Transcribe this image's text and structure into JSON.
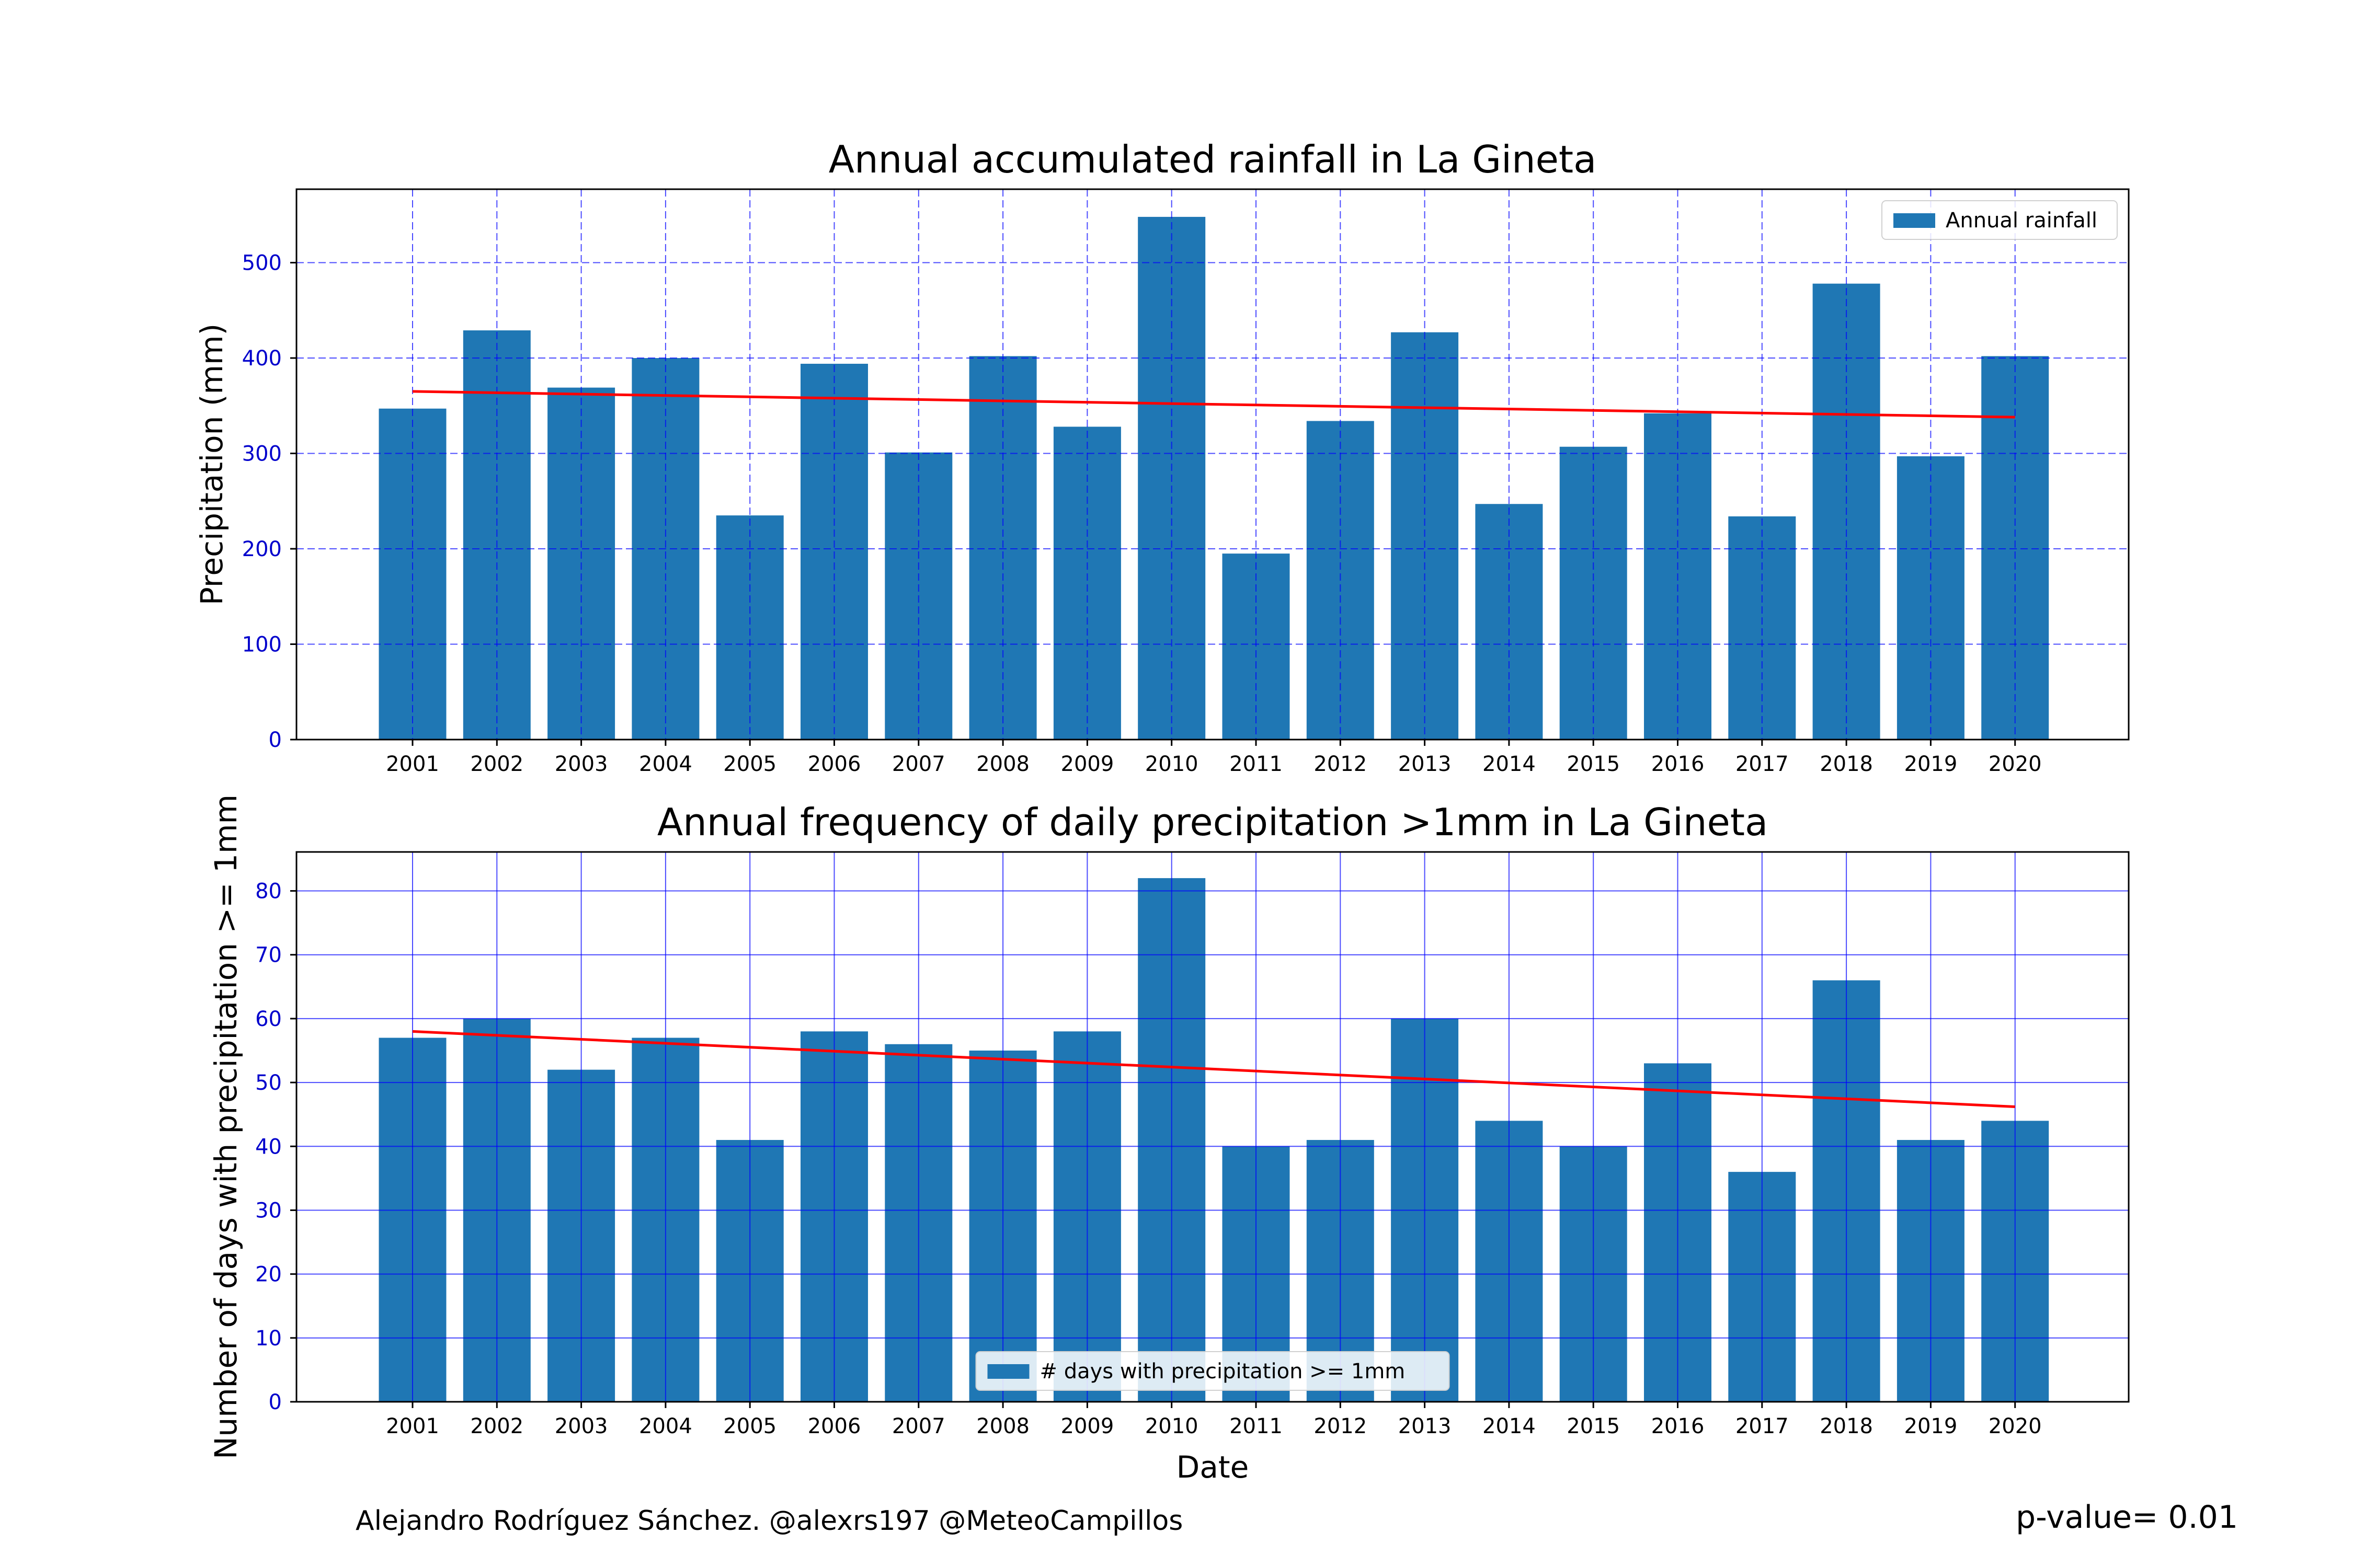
{
  "chart_data": [
    {
      "type": "bar",
      "title": "Annual accumulated rainfall in La Gineta",
      "xlabel": "",
      "ylabel": "Precipitation (mm)",
      "categories": [
        "2001",
        "2002",
        "2003",
        "2004",
        "2005",
        "2006",
        "2007",
        "2008",
        "2009",
        "2010",
        "2011",
        "2012",
        "2013",
        "2014",
        "2015",
        "2016",
        "2017",
        "2018",
        "2019",
        "2020"
      ],
      "series": [
        {
          "name": "Annual rainfall",
          "values": [
            347,
            429,
            369,
            400,
            235,
            394,
            301,
            402,
            328,
            548,
            195,
            334,
            427,
            247,
            307,
            342,
            234,
            478,
            297,
            402
          ]
        }
      ],
      "trend_line": {
        "start": [
          2001,
          365
        ],
        "end": [
          2020,
          338
        ],
        "color": "#ff0000"
      },
      "ylim": [
        0,
        577
      ],
      "yticks": [
        0,
        100,
        200,
        300,
        400,
        500
      ],
      "grid": {
        "on": true,
        "style": "dashed",
        "color": "#0000ff"
      },
      "legend": {
        "placement": "top-right"
      },
      "bar_color": "#1f77b4",
      "tick_label_color": "#0000cc"
    },
    {
      "type": "bar",
      "title": "Annual frequency of daily precipitation >1mm in La Gineta",
      "xlabel": "Date",
      "ylabel": "Number of days with precipitation >= 1mm",
      "categories": [
        "2001",
        "2002",
        "2003",
        "2004",
        "2005",
        "2006",
        "2007",
        "2008",
        "2009",
        "2010",
        "2011",
        "2012",
        "2013",
        "2014",
        "2015",
        "2016",
        "2017",
        "2018",
        "2019",
        "2020"
      ],
      "series": [
        {
          "name": "# days with precipitation >= 1mm",
          "values": [
            57,
            60,
            52,
            57,
            41,
            58,
            56,
            55,
            58,
            82,
            40,
            41,
            60,
            44,
            40,
            53,
            36,
            66,
            41,
            44
          ]
        }
      ],
      "trend_line": {
        "start": [
          2001,
          58
        ],
        "end": [
          2020,
          46.2
        ],
        "color": "#ff0000"
      },
      "ylim": [
        0,
        86.1
      ],
      "yticks": [
        0,
        10,
        20,
        30,
        40,
        50,
        60,
        70,
        80
      ],
      "grid": {
        "on": true,
        "style": "solid",
        "color": "#0000ff"
      },
      "legend": {
        "placement": "bottom-center"
      },
      "bar_color": "#1f77b4",
      "tick_label_color": "#0000cc"
    }
  ],
  "footer": {
    "credit": "Alejandro Rodríguez Sánchez. @alexrs197 @MeteoCampillos",
    "pvalue": "p-value= 0.01"
  }
}
